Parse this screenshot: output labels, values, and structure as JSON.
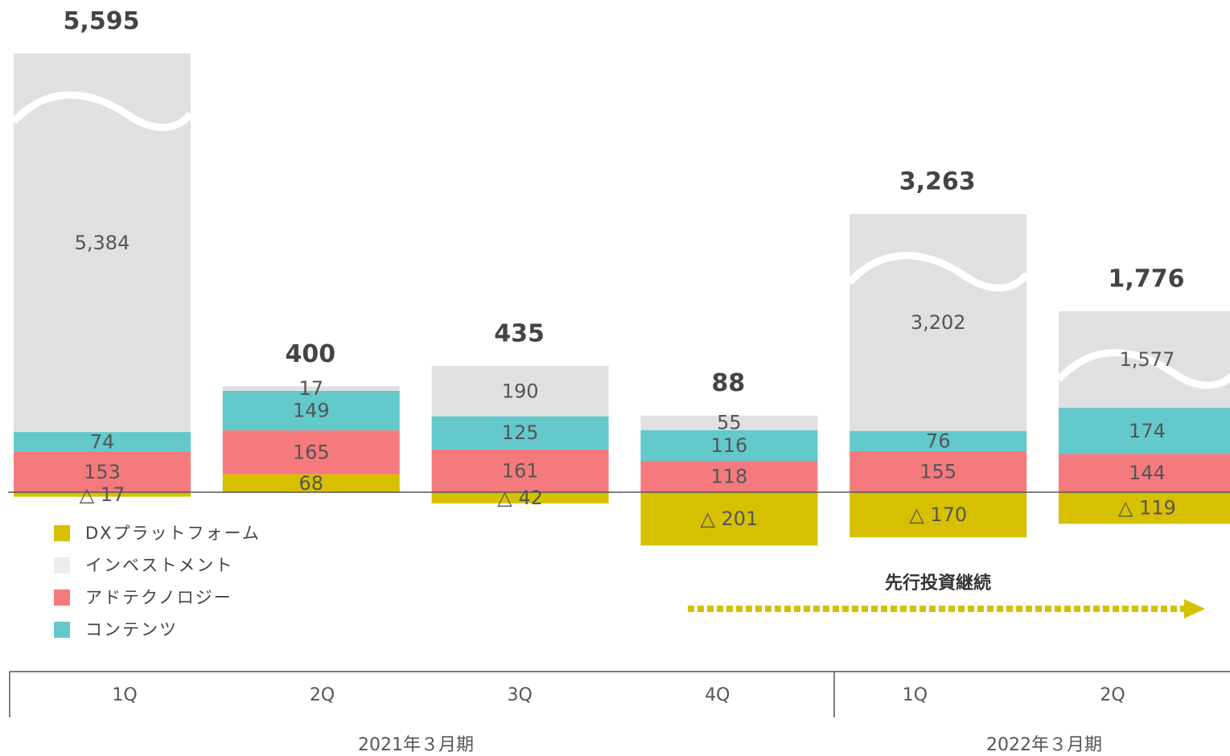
{
  "chart_data": {
    "type": "stacked_bar",
    "categories": [
      "1Q",
      "2Q",
      "3Q",
      "4Q",
      "1Q",
      "2Q"
    ],
    "groups": [
      "2021年３月期",
      "2022年３月期"
    ],
    "series": [
      {
        "name": "DXプラットフォーム",
        "color": "#d6c000",
        "values": [
          -17,
          68,
          -42,
          -201,
          -170,
          -119
        ],
        "value_labels": [
          "△ 17",
          "68",
          "△ 42",
          "△ 201",
          "△ 170",
          "△ 119"
        ]
      },
      {
        "name": "インベストメント",
        "color": "#e0e0e0",
        "values": [
          5384,
          17,
          190,
          55,
          3202,
          1577
        ],
        "value_labels": [
          "5,384",
          "17",
          "190",
          "55",
          "3,202",
          "1,577"
        ]
      },
      {
        "name": "アドテクノロジー",
        "color": "#f47a7e",
        "values": [
          153,
          165,
          161,
          118,
          155,
          144
        ]
      },
      {
        "name": "コンテンツ",
        "color": "#63c9cb",
        "values": [
          74,
          149,
          125,
          116,
          76,
          174
        ]
      }
    ],
    "totals": {
      "values": [
        5595,
        400,
        435,
        88,
        3263,
        1776
      ],
      "value_labels": [
        "5,595",
        "400",
        "435",
        "88",
        "3,263",
        "1,776"
      ]
    },
    "annotation": "先行投資継続"
  }
}
